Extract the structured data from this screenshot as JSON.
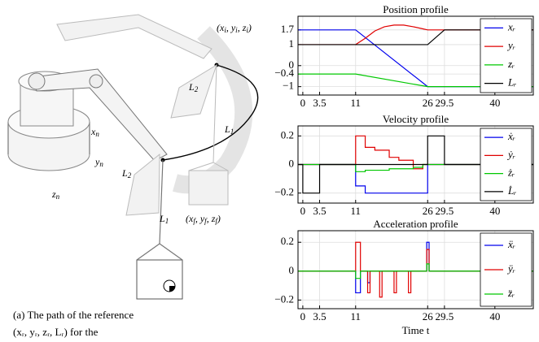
{
  "figure": {
    "labels": [
      [
        "(x",
        "i",
        ", y",
        "i",
        ", z",
        "i",
        ")"
      ],
      [
        "L",
        "2"
      ],
      [
        "L",
        "1"
      ],
      [
        "x",
        "n"
      ],
      [
        "y",
        "n"
      ],
      [
        "z",
        "n"
      ],
      [
        "L",
        "2"
      ],
      [
        "L",
        "1"
      ],
      [
        "(x",
        "f",
        ", y",
        "f",
        ", z",
        "f",
        ")"
      ]
    ],
    "caption": [
      "(a) The path of the reference",
      "(xᵣ, yᵣ, zᵣ, Lᵣ) for the"
    ]
  },
  "chart_data": [
    {
      "type": "line",
      "title": "Position profile",
      "xlim": [
        -1,
        48
      ],
      "xticks": [
        0,
        3.5,
        11,
        26,
        29.5,
        40
      ],
      "ylim": [
        -1.4,
        2.35
      ],
      "yticks": [
        1.7,
        1,
        0,
        {
          "value": -0.4,
          "label": "−0.4"
        },
        {
          "value": -1,
          "label": "−1"
        }
      ],
      "grid": true,
      "legend": "right",
      "series": [
        {
          "name": "xᵣ",
          "color": "#0000ee",
          "x": [
            -1,
            11,
            26,
            48
          ],
          "values": [
            1.7,
            1.7,
            -1,
            -1
          ]
        },
        {
          "name": "yᵣ",
          "color": "#e00000",
          "x": [
            -1,
            11,
            13,
            15,
            17,
            19,
            21,
            23,
            25,
            26,
            48
          ],
          "values": [
            1,
            1,
            1.3,
            1.65,
            1.85,
            1.93,
            1.93,
            1.85,
            1.75,
            1.7,
            1.7
          ]
        },
        {
          "name": "zᵣ",
          "color": "#00c800",
          "x": [
            -1,
            11,
            26,
            48
          ],
          "values": [
            -0.4,
            -0.4,
            -1,
            -1
          ]
        },
        {
          "name": "Lᵣ",
          "color": "#000000",
          "x": [
            -1,
            26,
            29.5,
            48
          ],
          "values": [
            1,
            1,
            1.7,
            1.7
          ]
        }
      ]
    },
    {
      "type": "line",
      "title": "Velocity profile",
      "xlim": [
        -1,
        48
      ],
      "xticks": [
        0,
        3.5,
        11,
        26,
        29.5,
        40
      ],
      "ylim": [
        -0.27,
        0.27
      ],
      "yticks": [
        0.2,
        0,
        {
          "value": -0.2,
          "label": "−0.2"
        }
      ],
      "grid": true,
      "legend": "right",
      "series": [
        {
          "name": "ẋᵣ",
          "color": "#0000ee",
          "x": [
            -1,
            11,
            11,
            13,
            13,
            26,
            26,
            48
          ],
          "values": [
            0,
            0,
            -0.15,
            -0.15,
            -0.2,
            -0.2,
            0,
            0
          ]
        },
        {
          "name": "ẏᵣ",
          "color": "#e00000",
          "x": [
            -1,
            11,
            11,
            13,
            13,
            15,
            15,
            18,
            18,
            20,
            20,
            23,
            23,
            25,
            25,
            48
          ],
          "values": [
            0,
            0,
            0.2,
            0.2,
            0.12,
            0.12,
            0.1,
            0.1,
            0.05,
            0.05,
            0.03,
            0.03,
            -0.03,
            -0.03,
            0,
            0
          ]
        },
        {
          "name": "żᵣ",
          "color": "#00c800",
          "x": [
            -1,
            11,
            11,
            13,
            13,
            18,
            18,
            23,
            23,
            25,
            25,
            48
          ],
          "values": [
            0,
            0,
            -0.05,
            -0.05,
            -0.04,
            -0.04,
            -0.03,
            -0.03,
            -0.02,
            -0.02,
            0,
            0
          ]
        },
        {
          "name": "L̇ᵣ",
          "color": "#000000",
          "x": [
            -1,
            0,
            0,
            3.5,
            3.5,
            26,
            26,
            29.5,
            29.5,
            48
          ],
          "values": [
            0,
            0,
            -0.2,
            -0.2,
            0,
            0,
            0.2,
            0.2,
            0,
            0
          ]
        }
      ]
    },
    {
      "type": "line",
      "title": "Acceleration profile",
      "xlabel": "Time t",
      "xlim": [
        -1,
        48
      ],
      "xticks": [
        0,
        3.5,
        11,
        26,
        29.5,
        40
      ],
      "ylim": [
        -0.26,
        0.28
      ],
      "yticks": [
        0.2,
        0,
        {
          "value": -0.2,
          "label": "−0.2"
        }
      ],
      "grid": true,
      "legend": "right",
      "series": [
        {
          "name": "ẍᵣ",
          "color": "#0000ee",
          "x": [
            -1,
            11,
            11,
            12,
            12,
            13.5,
            13.5,
            14,
            14,
            25.8,
            25.8,
            26.3,
            26.3,
            48
          ],
          "values": [
            0,
            0,
            -0.15,
            -0.15,
            0,
            0,
            -0.08,
            -0.08,
            0,
            0,
            0.2,
            0.2,
            0,
            0
          ]
        },
        {
          "name": "ÿᵣ",
          "color": "#e00000",
          "x": [
            -1,
            11,
            11,
            12,
            12,
            13.5,
            13.5,
            14,
            14,
            16,
            16,
            16.5,
            16.5,
            19,
            19,
            19.5,
            19.5,
            22,
            22,
            22.5,
            22.5,
            25.8,
            25.8,
            26.3,
            26.3,
            48
          ],
          "values": [
            0,
            0,
            0.2,
            0.2,
            0,
            0,
            -0.15,
            -0.15,
            0,
            0,
            -0.18,
            -0.18,
            0,
            0,
            -0.15,
            -0.15,
            0,
            0,
            -0.15,
            -0.15,
            0,
            0,
            0.15,
            0.15,
            0,
            0
          ]
        },
        {
          "name": "z̈ᵣ",
          "color": "#00c800",
          "x": [
            -1,
            11,
            11,
            12,
            12,
            25.8,
            25.8,
            26.3,
            26.3,
            48
          ],
          "values": [
            0,
            0,
            -0.05,
            -0.05,
            0,
            0,
            0.05,
            0.05,
            0,
            0
          ]
        }
      ]
    }
  ]
}
